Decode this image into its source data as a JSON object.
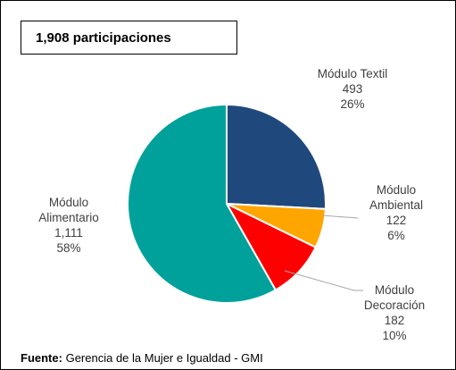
{
  "chart_data": {
    "type": "pie",
    "title": "1,908 participaciones",
    "categories": [
      "Módulo Textil",
      "Módulo Ambiental",
      "Módulo Decoración",
      "Módulo Alimentario"
    ],
    "values": [
      493,
      122,
      182,
      1111
    ],
    "value_labels": [
      "493",
      "122",
      "182",
      "1,111"
    ],
    "percent_labels": [
      "26%",
      "6%",
      "10%",
      "58%"
    ],
    "colors": [
      "#1f497d",
      "#ffa500",
      "#ff0000",
      "#00a19a"
    ],
    "source": {
      "label": "Fuente:",
      "text": "Gerencia de la Mujer e Igualdad - GMI"
    }
  }
}
